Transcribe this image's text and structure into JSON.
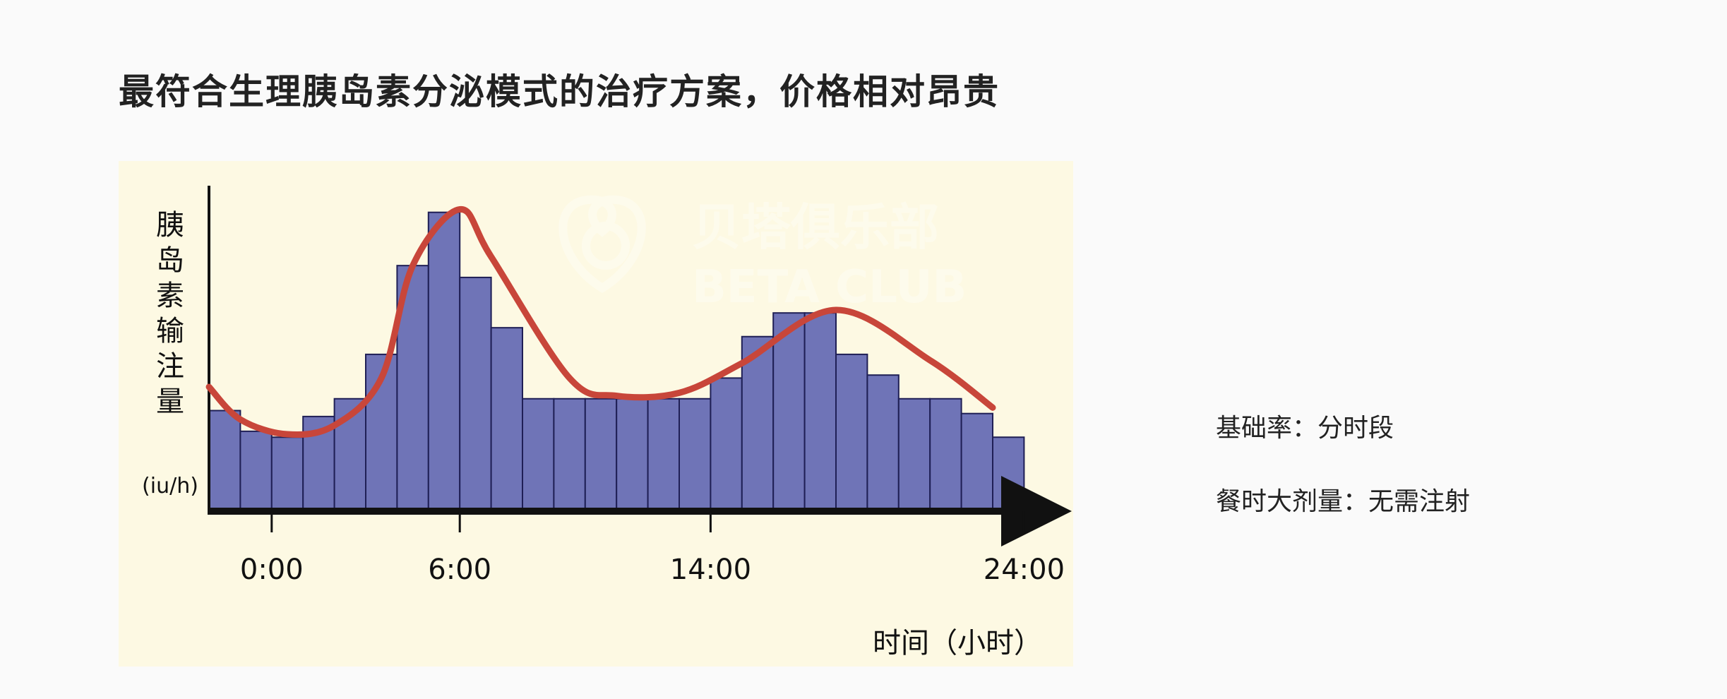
{
  "slide": {
    "title": "最符合生理胰岛素分泌模式的治疗方案，价格相对昂贵",
    "notes": {
      "basal": "基础率：分时段",
      "bolus": "餐时大剂量：无需注射"
    }
  },
  "chart_data": {
    "type": "bar",
    "title": "",
    "ylabel": "胰岛素输注量",
    "ylabel_unit": "(iu/h)",
    "xlabel": "时间（小时）",
    "x_ticks": [
      {
        "label": "0:00",
        "slot": 2
      },
      {
        "label": "6:00",
        "slot": 8
      },
      {
        "label": "14:00",
        "slot": 16
      },
      {
        "label": "24:00",
        "slot": 26
      }
    ],
    "slots": 26,
    "values": [
      3.4,
      2.7,
      2.5,
      3.2,
      3.8,
      5.3,
      8.3,
      10.1,
      7.9,
      6.2,
      3.8,
      3.8,
      3.8,
      3.8,
      3.8,
      3.8,
      4.5,
      5.9,
      6.7,
      6.7,
      5.3,
      4.6,
      3.8,
      3.8,
      3.3,
      2.5
    ],
    "ylim": [
      0,
      11
    ],
    "bar_color": "#6f74b7",
    "bar_edge_color": "#1f1f55",
    "curve_color": "#c8463a",
    "curve": [
      {
        "x": 0.0,
        "y": 4.2
      },
      {
        "x": 1.0,
        "y": 3.1
      },
      {
        "x": 2.5,
        "y": 2.6
      },
      {
        "x": 4.0,
        "y": 2.9
      },
      {
        "x": 5.5,
        "y": 4.5
      },
      {
        "x": 6.5,
        "y": 8.3
      },
      {
        "x": 8.0,
        "y": 10.2
      },
      {
        "x": 9.0,
        "y": 8.6
      },
      {
        "x": 11.5,
        "y": 4.5
      },
      {
        "x": 13.0,
        "y": 3.9
      },
      {
        "x": 15.0,
        "y": 4.0
      },
      {
        "x": 17.0,
        "y": 5.0
      },
      {
        "x": 20.0,
        "y": 6.8
      },
      {
        "x": 23.0,
        "y": 5.1
      },
      {
        "x": 25.0,
        "y": 3.5
      }
    ],
    "watermark": {
      "text_cn": "贝塔俱乐部",
      "text_en": "BETA CLUB"
    },
    "grid": false,
    "legend": "none"
  }
}
